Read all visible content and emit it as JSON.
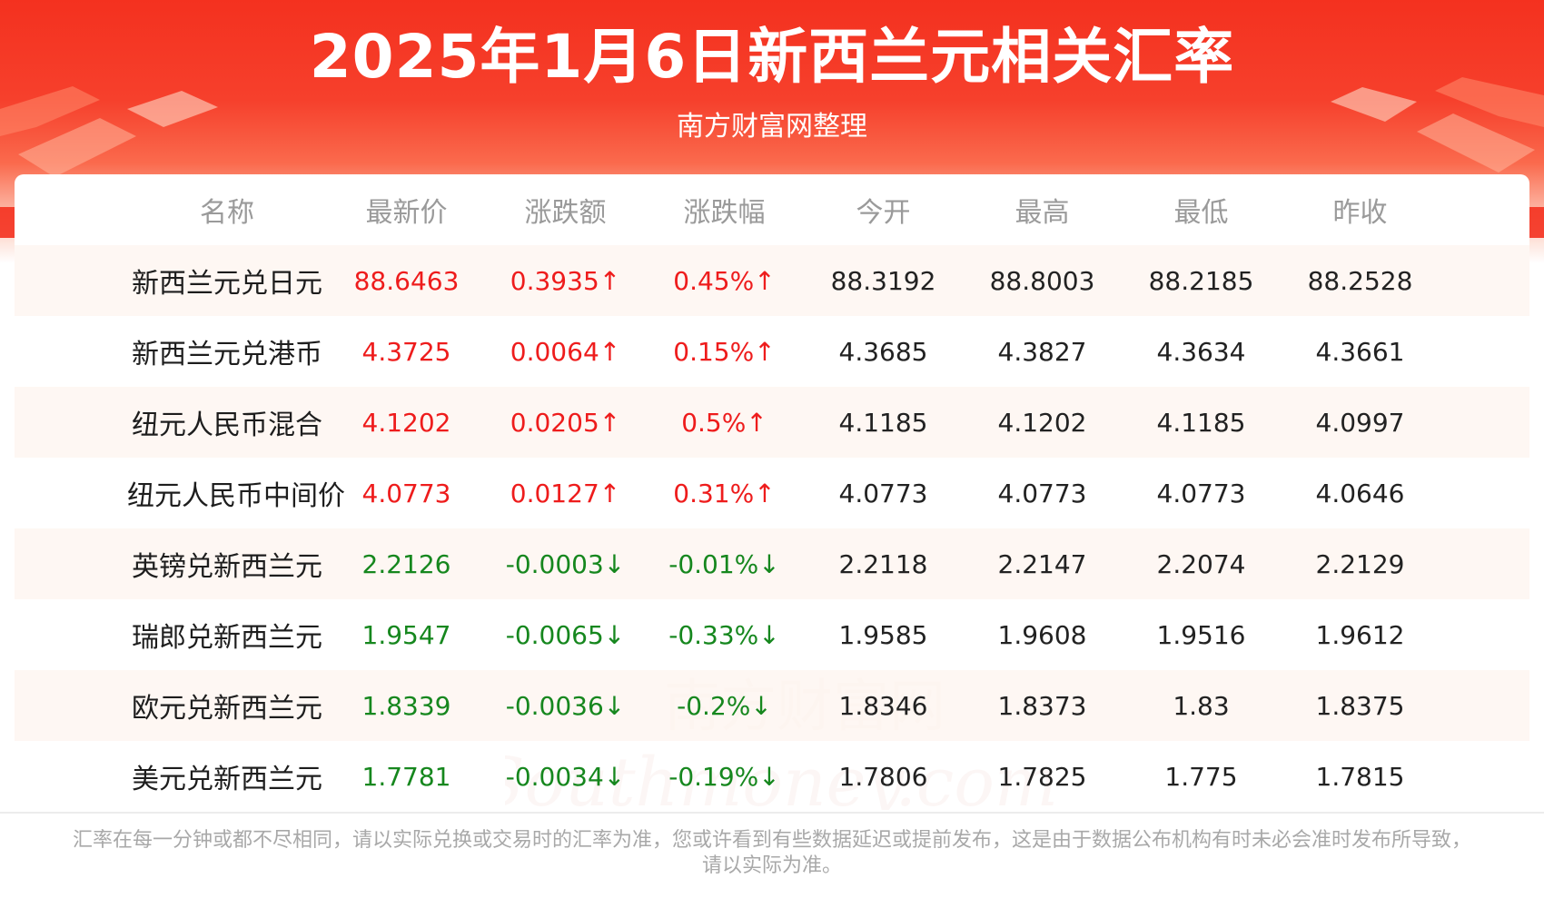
{
  "header": {
    "title": "2025年1月6日新西兰元相关汇率",
    "subtitle": "南方财富网整理"
  },
  "table": {
    "columns": [
      "名称",
      "最新价",
      "涨跌额",
      "涨跌幅",
      "今开",
      "最高",
      "最低",
      "昨收"
    ],
    "rows": [
      {
        "name": "新西兰元兑日元",
        "latest": "88.6463",
        "change": "0.3935↑",
        "pct": "0.45%↑",
        "open": "88.3192",
        "high": "88.8003",
        "low": "88.2185",
        "prev": "88.2528",
        "trend": "up"
      },
      {
        "name": "新西兰元兑港币",
        "latest": "4.3725",
        "change": "0.0064↑",
        "pct": "0.15%↑",
        "open": "4.3685",
        "high": "4.3827",
        "low": "4.3634",
        "prev": "4.3661",
        "trend": "up"
      },
      {
        "name": "纽元人民币混合",
        "latest": "4.1202",
        "change": "0.0205↑",
        "pct": "0.5%↑",
        "open": "4.1185",
        "high": "4.1202",
        "low": "4.1185",
        "prev": "4.0997",
        "trend": "up"
      },
      {
        "name": "纽元人民币中间价",
        "latest": "4.0773",
        "change": "0.0127↑",
        "pct": "0.31%↑",
        "open": "4.0773",
        "high": "4.0773",
        "low": "4.0773",
        "prev": "4.0646",
        "trend": "up"
      },
      {
        "name": "英镑兑新西兰元",
        "latest": "2.2126",
        "change": "-0.0003↓",
        "pct": "-0.01%↓",
        "open": "2.2118",
        "high": "2.2147",
        "low": "2.2074",
        "prev": "2.2129",
        "trend": "down"
      },
      {
        "name": "瑞郎兑新西兰元",
        "latest": "1.9547",
        "change": "-0.0065↓",
        "pct": "-0.33%↓",
        "open": "1.9585",
        "high": "1.9608",
        "low": "1.9516",
        "prev": "1.9612",
        "trend": "down"
      },
      {
        "name": "欧元兑新西兰元",
        "latest": "1.8339",
        "change": "-0.0036↓",
        "pct": "-0.2%↓",
        "open": "1.8346",
        "high": "1.8373",
        "low": "1.83",
        "prev": "1.8375",
        "trend": "down"
      },
      {
        "name": "美元兑新西兰元",
        "latest": "1.7781",
        "change": "-0.0034↓",
        "pct": "-0.19%↓",
        "open": "1.7806",
        "high": "1.7825",
        "low": "1.775",
        "prev": "1.7815",
        "trend": "down"
      }
    ]
  },
  "watermark": {
    "cn": "南方财富网",
    "en": "Southmoney.com"
  },
  "footer": {
    "line1": "汇率在每一分钟或都不尽相同，请以实际兑换或交易时的汇率为准，您或许看到有些数据延迟或提前发布，这是由于数据公布机构有时未必会准时发布所导致，",
    "line2": "请以实际为准。"
  },
  "colors": {
    "banner_red": "#f4311f",
    "up": "#ee1c1c",
    "down": "#16871e",
    "row_tint": "#fef6f1",
    "header_text": "#9a9a9a"
  }
}
